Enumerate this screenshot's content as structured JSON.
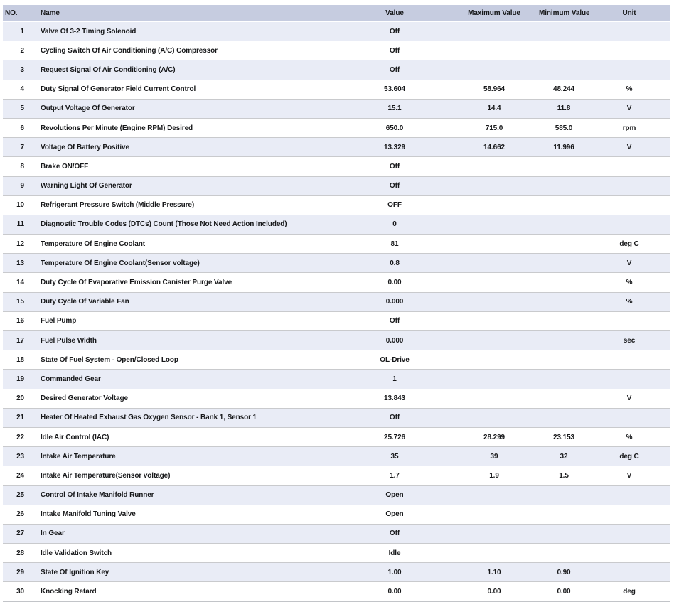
{
  "table": {
    "columns": {
      "no": "NO.",
      "name": "Name",
      "value": "Value",
      "max": "Maximum Value",
      "min": "Minimum Value",
      "unit": "Unit"
    },
    "rows": [
      {
        "no": "1",
        "name": "Valve Of 3-2 Timing Solenoid",
        "value": "Off",
        "max": "",
        "min": "",
        "unit": ""
      },
      {
        "no": "2",
        "name": "Cycling Switch Of Air Conditioning (A/C) Compressor",
        "value": "Off",
        "max": "",
        "min": "",
        "unit": ""
      },
      {
        "no": "3",
        "name": "Request Signal Of Air Conditioning (A/C)",
        "value": "Off",
        "max": "",
        "min": "",
        "unit": ""
      },
      {
        "no": "4",
        "name": "Duty Signal Of Generator Field Current Control",
        "value": "53.604",
        "max": "58.964",
        "min": "48.244",
        "unit": "%"
      },
      {
        "no": "5",
        "name": "Output Voltage Of Generator",
        "value": "15.1",
        "max": "14.4",
        "min": "11.8",
        "unit": "V"
      },
      {
        "no": "6",
        "name": "Revolutions Per Minute (Engine RPM) Desired",
        "value": "650.0",
        "max": "715.0",
        "min": "585.0",
        "unit": "rpm"
      },
      {
        "no": "7",
        "name": "Voltage Of Battery Positive",
        "value": "13.329",
        "max": "14.662",
        "min": "11.996",
        "unit": "V"
      },
      {
        "no": "8",
        "name": "Brake ON/OFF",
        "value": "Off",
        "max": "",
        "min": "",
        "unit": ""
      },
      {
        "no": "9",
        "name": "Warning Light Of Generator",
        "value": "Off",
        "max": "",
        "min": "",
        "unit": ""
      },
      {
        "no": "10",
        "name": "Refrigerant Pressure Switch (Middle Pressure)",
        "value": "OFF",
        "max": "",
        "min": "",
        "unit": ""
      },
      {
        "no": "11",
        "name": "Diagnostic Trouble Codes (DTCs) Count (Those Not Need Action Included)",
        "value": "0",
        "max": "",
        "min": "",
        "unit": ""
      },
      {
        "no": "12",
        "name": "Temperature Of Engine Coolant",
        "value": "81",
        "max": "",
        "min": "",
        "unit": "deg C"
      },
      {
        "no": "13",
        "name": "Temperature Of Engine Coolant(Sensor voltage)",
        "value": "0.8",
        "max": "",
        "min": "",
        "unit": "V"
      },
      {
        "no": "14",
        "name": "Duty Cycle Of Evaporative Emission Canister Purge Valve",
        "value": "0.00",
        "max": "",
        "min": "",
        "unit": "%"
      },
      {
        "no": "15",
        "name": "Duty Cycle Of Variable Fan",
        "value": "0.000",
        "max": "",
        "min": "",
        "unit": "%"
      },
      {
        "no": "16",
        "name": "Fuel Pump",
        "value": "Off",
        "max": "",
        "min": "",
        "unit": ""
      },
      {
        "no": "17",
        "name": "Fuel Pulse Width",
        "value": "0.000",
        "max": "",
        "min": "",
        "unit": "sec"
      },
      {
        "no": "18",
        "name": "State Of Fuel System - Open/Closed Loop",
        "value": "OL-Drive",
        "max": "",
        "min": "",
        "unit": ""
      },
      {
        "no": "19",
        "name": "Commanded Gear",
        "value": "1",
        "max": "",
        "min": "",
        "unit": ""
      },
      {
        "no": "20",
        "name": "Desired Generator Voltage",
        "value": "13.843",
        "max": "",
        "min": "",
        "unit": "V"
      },
      {
        "no": "21",
        "name": "Heater Of Heated Exhaust Gas Oxygen Sensor - Bank 1, Sensor 1",
        "value": "Off",
        "max": "",
        "min": "",
        "unit": ""
      },
      {
        "no": "22",
        "name": "Idle Air Control (IAC)",
        "value": "25.726",
        "max": "28.299",
        "min": "23.153",
        "unit": "%"
      },
      {
        "no": "23",
        "name": "Intake Air Temperature",
        "value": "35",
        "max": "39",
        "min": "32",
        "unit": "deg C"
      },
      {
        "no": "24",
        "name": "Intake Air Temperature(Sensor voltage)",
        "value": "1.7",
        "max": "1.9",
        "min": "1.5",
        "unit": "V"
      },
      {
        "no": "25",
        "name": "Control Of Intake Manifold Runner",
        "value": "Open",
        "max": "",
        "min": "",
        "unit": ""
      },
      {
        "no": "26",
        "name": "Intake Manifold Tuning Valve",
        "value": "Open",
        "max": "",
        "min": "",
        "unit": ""
      },
      {
        "no": "27",
        "name": "In Gear",
        "value": "Off",
        "max": "",
        "min": "",
        "unit": ""
      },
      {
        "no": "28",
        "name": "Idle Validation Switch",
        "value": "Idle",
        "max": "",
        "min": "",
        "unit": ""
      },
      {
        "no": "29",
        "name": "State Of Ignition Key",
        "value": "1.00",
        "max": "1.10",
        "min": "0.90",
        "unit": ""
      },
      {
        "no": "30",
        "name": "Knocking Retard",
        "value": "0.00",
        "max": "0.00",
        "min": "0.00",
        "unit": "deg"
      }
    ]
  },
  "colors": {
    "header_bg": "#c6cce0",
    "row_alt_bg": "#e9ecf6",
    "row_bg": "#ffffff",
    "divider": "#c9cacd",
    "text": "#17181a"
  }
}
